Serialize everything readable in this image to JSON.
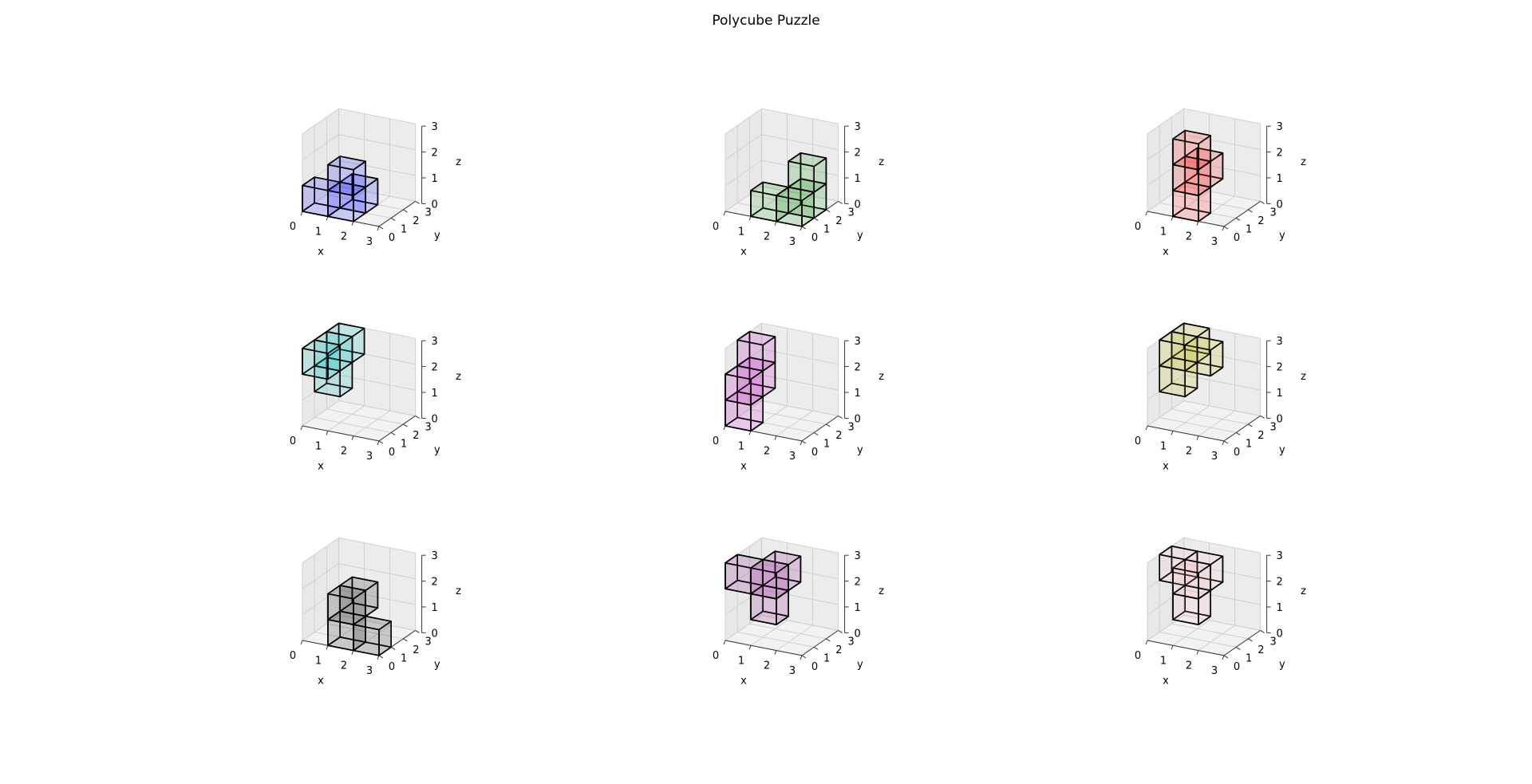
{
  "figure": {
    "title": "Polycube Puzzle"
  },
  "chart_data": [
    {
      "type": "voxel3d",
      "color": "#0000ff",
      "xlabel": "x",
      "ylabel": "y",
      "zlabel": "z",
      "xlim": [
        0,
        3
      ],
      "ylim": [
        0,
        3
      ],
      "zlim": [
        0,
        3
      ],
      "xticks": [
        "0",
        "1",
        "2",
        "3"
      ],
      "yticks": [
        "0",
        "1",
        "2",
        "3"
      ],
      "zticks": [
        "0",
        "1",
        "2",
        "3"
      ],
      "cubes": [
        [
          0,
          0,
          0
        ],
        [
          1,
          0,
          0
        ],
        [
          1,
          1,
          0
        ],
        [
          1,
          0,
          1
        ]
      ]
    },
    {
      "type": "voxel3d",
      "color": "#008000",
      "xlabel": "x",
      "ylabel": "y",
      "zlabel": "z",
      "xlim": [
        0,
        3
      ],
      "ylim": [
        0,
        3
      ],
      "zlim": [
        0,
        3
      ],
      "xticks": [
        "0",
        "1",
        "2",
        "3"
      ],
      "yticks": [
        "0",
        "1",
        "2",
        "3"
      ],
      "zticks": [
        "0",
        "1",
        "2",
        "3"
      ],
      "cubes": [
        [
          1,
          0,
          0
        ],
        [
          2,
          0,
          0
        ],
        [
          2,
          1,
          0
        ],
        [
          2,
          1,
          1
        ]
      ]
    },
    {
      "type": "voxel3d",
      "color": "#ff0000",
      "xlabel": "x",
      "ylabel": "y",
      "zlabel": "z",
      "xlim": [
        0,
        3
      ],
      "ylim": [
        0,
        3
      ],
      "zlim": [
        0,
        3
      ],
      "xticks": [
        "0",
        "1",
        "2",
        "3"
      ],
      "yticks": [
        "0",
        "1",
        "2",
        "3"
      ],
      "zticks": [
        "0",
        "1",
        "2",
        "3"
      ],
      "cubes": [
        [
          1,
          0,
          0
        ],
        [
          1,
          0,
          1
        ],
        [
          1,
          1,
          1
        ],
        [
          1,
          0,
          2
        ]
      ]
    },
    {
      "type": "voxel3d",
      "color": "#00bfbf",
      "xlabel": "x",
      "ylabel": "y",
      "zlabel": "z",
      "xlim": [
        0,
        3
      ],
      "ylim": [
        0,
        3
      ],
      "zlim": [
        0,
        3
      ],
      "xticks": [
        "0",
        "1",
        "2",
        "3"
      ],
      "yticks": [
        "0",
        "1",
        "2",
        "3"
      ],
      "zticks": [
        "0",
        "1",
        "2",
        "3"
      ],
      "cubes": [
        [
          0,
          0,
          2
        ],
        [
          0,
          1,
          2
        ],
        [
          0,
          1,
          1
        ],
        [
          0,
          2,
          2
        ]
      ]
    },
    {
      "type": "voxel3d",
      "color": "#bf00bf",
      "xlabel": "x",
      "ylabel": "y",
      "zlabel": "z",
      "xlim": [
        0,
        3
      ],
      "ylim": [
        0,
        3
      ],
      "zlim": [
        0,
        3
      ],
      "xticks": [
        "0",
        "1",
        "2",
        "3"
      ],
      "yticks": [
        "0",
        "1",
        "2",
        "3"
      ],
      "zticks": [
        "0",
        "1",
        "2",
        "3"
      ],
      "cubes": [
        [
          0,
          0,
          0
        ],
        [
          0,
          0,
          1
        ],
        [
          0,
          1,
          1
        ],
        [
          0,
          1,
          2
        ]
      ]
    },
    {
      "type": "voxel3d",
      "color": "#bfbf00",
      "xlabel": "x",
      "ylabel": "y",
      "zlabel": "z",
      "xlim": [
        0,
        3
      ],
      "ylim": [
        0,
        3
      ],
      "zlim": [
        0,
        3
      ],
      "xticks": [
        "0",
        "1",
        "2",
        "3"
      ],
      "yticks": [
        "0",
        "1",
        "2",
        "3"
      ],
      "zticks": [
        "0",
        "1",
        "2",
        "3"
      ],
      "cubes": [
        [
          0,
          1,
          1
        ],
        [
          0,
          1,
          2
        ],
        [
          1,
          1,
          2
        ],
        [
          0,
          2,
          2
        ]
      ]
    },
    {
      "type": "voxel3d",
      "color": "#000000",
      "xlabel": "x",
      "ylabel": "y",
      "zlabel": "z",
      "xlim": [
        0,
        3
      ],
      "ylim": [
        0,
        3
      ],
      "zlim": [
        0,
        3
      ],
      "xticks": [
        "0",
        "1",
        "2",
        "3"
      ],
      "yticks": [
        "0",
        "1",
        "2",
        "3"
      ],
      "zticks": [
        "0",
        "1",
        "2",
        "3"
      ],
      "cubes": [
        [
          1,
          0,
          0
        ],
        [
          2,
          0,
          0
        ],
        [
          1,
          0,
          1
        ],
        [
          1,
          1,
          1
        ]
      ]
    },
    {
      "type": "voxel3d",
      "color": "#800080",
      "xlabel": "x",
      "ylabel": "y",
      "zlabel": "z",
      "xlim": [
        0,
        3
      ],
      "ylim": [
        0,
        3
      ],
      "zlim": [
        0,
        3
      ],
      "xticks": [
        "0",
        "1",
        "2",
        "3"
      ],
      "yticks": [
        "0",
        "1",
        "2",
        "3"
      ],
      "zticks": [
        "0",
        "1",
        "2",
        "3"
      ],
      "cubes": [
        [
          0,
          0,
          2
        ],
        [
          1,
          0,
          2
        ],
        [
          1,
          0,
          1
        ],
        [
          1,
          1,
          2
        ]
      ]
    },
    {
      "type": "voxel3d",
      "color": "#ffc0cb",
      "xlabel": "x",
      "ylabel": "y",
      "zlabel": "z",
      "xlim": [
        0,
        3
      ],
      "ylim": [
        0,
        3
      ],
      "zlim": [
        0,
        3
      ],
      "xticks": [
        "0",
        "1",
        "2",
        "3"
      ],
      "yticks": [
        "0",
        "1",
        "2",
        "3"
      ],
      "zticks": [
        "0",
        "1",
        "2",
        "3"
      ],
      "cubes": [
        [
          1,
          0,
          2
        ],
        [
          1,
          0,
          1
        ],
        [
          1,
          1,
          2
        ],
        [
          0,
          1,
          2
        ]
      ]
    }
  ]
}
